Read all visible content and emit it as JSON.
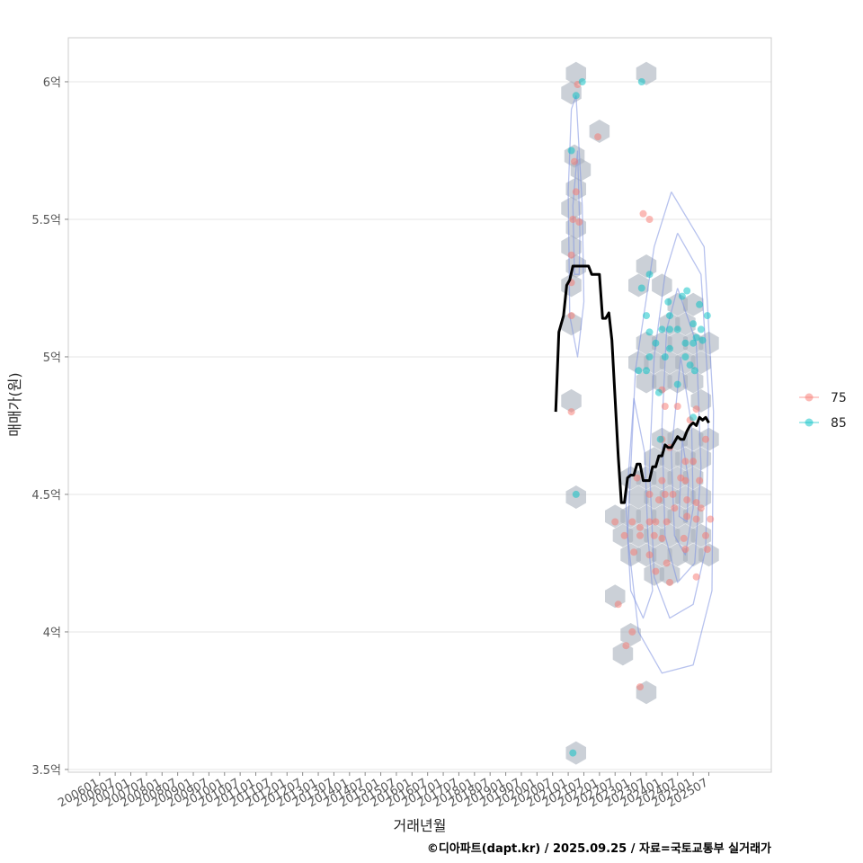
{
  "chart_data": {
    "type": "scatter",
    "title": "",
    "xlabel": "거래년월",
    "ylabel": "매매가(원)",
    "caption": "©디아파트(dapt.kr) / 2025.09.25 / 자료=국토교통부 실거래가",
    "x_ticks": [
      "200601",
      "200607",
      "200701",
      "200707",
      "200801",
      "200807",
      "200901",
      "200907",
      "201001",
      "201007",
      "201101",
      "201107",
      "201201",
      "201207",
      "201301",
      "201307",
      "201401",
      "201407",
      "201501",
      "201507",
      "201601",
      "201607",
      "201701",
      "201707",
      "201801",
      "201807",
      "201901",
      "201907",
      "202001",
      "202007",
      "202101",
      "202107",
      "202201",
      "202207",
      "202301",
      "202307",
      "202401",
      "202407",
      "202501",
      "202507"
    ],
    "y_ticks": [
      {
        "value": 3.5,
        "label": "3.5억"
      },
      {
        "value": 4.0,
        "label": "4억"
      },
      {
        "value": 4.5,
        "label": "4.5억"
      },
      {
        "value": 5.0,
        "label": "5억"
      },
      {
        "value": 5.5,
        "label": "5.5억"
      },
      {
        "value": 6.0,
        "label": "6억"
      }
    ],
    "ylim": [
      3.49,
      6.16
    ],
    "x_index_range": [
      -2.0,
      43.0
    ],
    "grid": true,
    "legend": {
      "position": "right",
      "entries": [
        {
          "label": "75",
          "color": "#F8766D"
        },
        {
          "label": "85",
          "color": "#00BFC4"
        }
      ]
    },
    "hex_cells": [
      [
        30.5,
        6.03
      ],
      [
        30.2,
        5.96
      ],
      [
        30.4,
        5.73
      ],
      [
        30.8,
        5.68
      ],
      [
        30.5,
        5.61
      ],
      [
        30.2,
        5.54
      ],
      [
        30.5,
        5.47
      ],
      [
        30.2,
        5.4
      ],
      [
        30.5,
        5.33
      ],
      [
        30.2,
        5.26
      ],
      [
        30.2,
        5.12
      ],
      [
        30.2,
        4.84
      ],
      [
        30.5,
        4.49
      ],
      [
        30.5,
        3.56
      ],
      [
        32.0,
        5.82
      ],
      [
        35.0,
        6.03
      ],
      [
        34.5,
        5.26
      ],
      [
        35.0,
        5.33
      ],
      [
        36.0,
        5.26
      ],
      [
        37.0,
        5.19
      ],
      [
        38.0,
        5.19
      ],
      [
        36.5,
        5.12
      ],
      [
        37.5,
        5.12
      ],
      [
        35.0,
        5.05
      ],
      [
        36.0,
        5.05
      ],
      [
        37.0,
        5.05
      ],
      [
        38.0,
        5.05
      ],
      [
        39.0,
        5.05
      ],
      [
        34.5,
        4.98
      ],
      [
        35.5,
        4.98
      ],
      [
        36.5,
        4.98
      ],
      [
        37.5,
        4.98
      ],
      [
        38.5,
        4.98
      ],
      [
        35.0,
        4.91
      ],
      [
        36.0,
        4.91
      ],
      [
        37.0,
        4.91
      ],
      [
        38.0,
        4.91
      ],
      [
        38.5,
        4.84
      ],
      [
        36.0,
        4.7
      ],
      [
        37.0,
        4.7
      ],
      [
        38.0,
        4.7
      ],
      [
        39.0,
        4.7
      ],
      [
        35.5,
        4.63
      ],
      [
        36.5,
        4.63
      ],
      [
        37.5,
        4.63
      ],
      [
        38.5,
        4.63
      ],
      [
        34.0,
        4.56
      ],
      [
        35.0,
        4.56
      ],
      [
        36.0,
        4.56
      ],
      [
        37.0,
        4.56
      ],
      [
        38.0,
        4.56
      ],
      [
        34.5,
        4.49
      ],
      [
        35.5,
        4.49
      ],
      [
        36.5,
        4.49
      ],
      [
        37.5,
        4.49
      ],
      [
        38.5,
        4.49
      ],
      [
        33.0,
        4.42
      ],
      [
        34.0,
        4.42
      ],
      [
        35.0,
        4.42
      ],
      [
        36.0,
        4.42
      ],
      [
        37.0,
        4.42
      ],
      [
        38.0,
        4.42
      ],
      [
        33.5,
        4.35
      ],
      [
        34.5,
        4.35
      ],
      [
        35.5,
        4.35
      ],
      [
        36.5,
        4.35
      ],
      [
        37.5,
        4.35
      ],
      [
        38.5,
        4.35
      ],
      [
        34.0,
        4.28
      ],
      [
        35.0,
        4.28
      ],
      [
        36.0,
        4.28
      ],
      [
        37.0,
        4.28
      ],
      [
        38.0,
        4.28
      ],
      [
        39.0,
        4.28
      ],
      [
        35.5,
        4.21
      ],
      [
        36.5,
        4.21
      ],
      [
        33.0,
        4.13
      ],
      [
        34.0,
        3.99
      ],
      [
        33.5,
        3.92
      ],
      [
        35.0,
        3.78
      ]
    ],
    "contours": [
      [
        [
          30.5,
          5.95
        ],
        [
          30.9,
          5.55
        ],
        [
          31.0,
          5.2
        ],
        [
          30.6,
          5.0
        ],
        [
          30.1,
          5.15
        ],
        [
          30.0,
          5.6
        ],
        [
          30.2,
          5.9
        ],
        [
          30.5,
          5.95
        ]
      ],
      [
        [
          30.6,
          5.75
        ],
        [
          30.75,
          5.45
        ],
        [
          30.7,
          5.3
        ],
        [
          30.4,
          5.3
        ],
        [
          30.3,
          5.55
        ],
        [
          30.6,
          5.75
        ]
      ],
      [
        [
          37.0,
          5.45
        ],
        [
          38.5,
          5.3
        ],
        [
          39.0,
          4.85
        ],
        [
          38.8,
          4.3
        ],
        [
          38.0,
          4.1
        ],
        [
          36.5,
          4.05
        ],
        [
          35.5,
          4.2
        ],
        [
          35.2,
          4.6
        ],
        [
          35.5,
          5.0
        ],
        [
          36.2,
          5.3
        ],
        [
          37.0,
          5.45
        ]
      ],
      [
        [
          37.0,
          5.25
        ],
        [
          38.2,
          5.05
        ],
        [
          38.5,
          4.6
        ],
        [
          38.1,
          4.25
        ],
        [
          37.0,
          4.18
        ],
        [
          36.2,
          4.35
        ],
        [
          36.0,
          4.75
        ],
        [
          36.3,
          5.1
        ],
        [
          37.0,
          5.25
        ]
      ],
      [
        [
          37.2,
          5.0
        ],
        [
          37.9,
          4.75
        ],
        [
          38.0,
          4.45
        ],
        [
          37.5,
          4.28
        ],
        [
          36.8,
          4.35
        ],
        [
          36.6,
          4.65
        ],
        [
          37.2,
          5.0
        ]
      ],
      [
        [
          37.3,
          4.7
        ],
        [
          37.7,
          4.55
        ],
        [
          37.6,
          4.4
        ],
        [
          37.1,
          4.42
        ],
        [
          37.3,
          4.7
        ]
      ],
      [
        [
          34.2,
          4.85
        ],
        [
          34.9,
          4.65
        ],
        [
          35.1,
          4.35
        ],
        [
          35.4,
          4.15
        ],
        [
          34.8,
          4.05
        ],
        [
          34.0,
          4.15
        ],
        [
          33.7,
          4.45
        ],
        [
          34.2,
          4.85
        ]
      ],
      [
        [
          36.6,
          5.6
        ],
        [
          38.7,
          5.4
        ],
        [
          39.3,
          4.8
        ],
        [
          39.2,
          4.15
        ],
        [
          38.0,
          3.88
        ],
        [
          36.0,
          3.85
        ],
        [
          34.5,
          4.0
        ],
        [
          33.8,
          4.35
        ],
        [
          34.3,
          4.95
        ],
        [
          35.5,
          5.4
        ],
        [
          36.6,
          5.6
        ]
      ]
    ],
    "series": [
      {
        "name": "75",
        "color": "#F8766D",
        "points": [
          [
            30.6,
            5.99
          ],
          [
            30.4,
            5.71
          ],
          [
            30.5,
            5.6
          ],
          [
            30.3,
            5.5
          ],
          [
            30.7,
            5.49
          ],
          [
            30.2,
            5.37
          ],
          [
            30.2,
            5.27
          ],
          [
            30.2,
            5.15
          ],
          [
            30.2,
            4.8
          ],
          [
            31.9,
            5.8
          ],
          [
            34.8,
            5.52
          ],
          [
            35.2,
            5.5
          ],
          [
            36.0,
            4.88
          ],
          [
            36.2,
            4.82
          ],
          [
            37.0,
            4.82
          ],
          [
            38.2,
            4.81
          ],
          [
            37.8,
            4.77
          ],
          [
            38.8,
            4.7
          ],
          [
            36.0,
            4.7
          ],
          [
            36.5,
            4.67
          ],
          [
            37.5,
            4.62
          ],
          [
            38.0,
            4.62
          ],
          [
            36.0,
            4.55
          ],
          [
            37.5,
            4.55
          ],
          [
            37.2,
            4.56
          ],
          [
            38.4,
            4.55
          ],
          [
            34.4,
            4.56
          ],
          [
            35.2,
            4.5
          ],
          [
            35.8,
            4.48
          ],
          [
            36.2,
            4.5
          ],
          [
            36.7,
            4.5
          ],
          [
            37.6,
            4.48
          ],
          [
            38.2,
            4.47
          ],
          [
            38.5,
            4.45
          ],
          [
            33.0,
            4.4
          ],
          [
            34.1,
            4.4
          ],
          [
            34.6,
            4.38
          ],
          [
            35.2,
            4.4
          ],
          [
            35.6,
            4.4
          ],
          [
            36.3,
            4.4
          ],
          [
            36.8,
            4.45
          ],
          [
            37.6,
            4.42
          ],
          [
            38.2,
            4.41
          ],
          [
            39.1,
            4.41
          ],
          [
            33.6,
            4.35
          ],
          [
            34.6,
            4.35
          ],
          [
            35.5,
            4.35
          ],
          [
            36.0,
            4.34
          ],
          [
            37.4,
            4.34
          ],
          [
            38.8,
            4.35
          ],
          [
            34.2,
            4.29
          ],
          [
            35.2,
            4.28
          ],
          [
            36.3,
            4.25
          ],
          [
            37.5,
            4.3
          ],
          [
            38.9,
            4.3
          ],
          [
            35.6,
            4.22
          ],
          [
            36.5,
            4.18
          ],
          [
            38.2,
            4.2
          ],
          [
            33.2,
            4.1
          ],
          [
            34.1,
            4.0
          ],
          [
            33.7,
            3.95
          ],
          [
            34.6,
            3.8
          ]
        ]
      },
      {
        "name": "85",
        "color": "#00BFC4",
        "points": [
          [
            30.9,
            6.0
          ],
          [
            30.5,
            5.95
          ],
          [
            30.2,
            5.75
          ],
          [
            30.5,
            4.5
          ],
          [
            30.3,
            3.56
          ],
          [
            34.7,
            6.0
          ],
          [
            35.2,
            5.3
          ],
          [
            34.7,
            5.25
          ],
          [
            36.4,
            5.2
          ],
          [
            37.3,
            5.22
          ],
          [
            37.6,
            5.24
          ],
          [
            38.4,
            5.19
          ],
          [
            38.9,
            5.15
          ],
          [
            35.0,
            5.15
          ],
          [
            36.5,
            5.15
          ],
          [
            37.0,
            5.1
          ],
          [
            38.0,
            5.12
          ],
          [
            38.5,
            5.1
          ],
          [
            35.2,
            5.09
          ],
          [
            36.0,
            5.1
          ],
          [
            36.5,
            5.1
          ],
          [
            38.2,
            5.07
          ],
          [
            38.6,
            5.06
          ],
          [
            35.6,
            5.05
          ],
          [
            36.5,
            5.03
          ],
          [
            37.5,
            5.05
          ],
          [
            38.0,
            5.05
          ],
          [
            35.2,
            5.0
          ],
          [
            36.2,
            5.0
          ],
          [
            37.5,
            5.0
          ],
          [
            37.8,
            4.97
          ],
          [
            34.5,
            4.95
          ],
          [
            35.0,
            4.95
          ],
          [
            38.1,
            4.95
          ],
          [
            37.0,
            4.9
          ],
          [
            35.8,
            4.87
          ],
          [
            38.0,
            4.78
          ],
          [
            35.9,
            4.7
          ]
        ]
      }
    ],
    "trend": {
      "name": "",
      "color": "#000000",
      "points": [
        [
          29.2,
          4.8
        ],
        [
          29.4,
          5.09
        ],
        [
          29.7,
          5.15
        ],
        [
          29.9,
          5.26
        ],
        [
          30.1,
          5.28
        ],
        [
          30.3,
          5.33
        ],
        [
          30.6,
          5.33
        ],
        [
          31.0,
          5.33
        ],
        [
          31.3,
          5.33
        ],
        [
          31.5,
          5.3
        ],
        [
          32.0,
          5.3
        ],
        [
          32.2,
          5.14
        ],
        [
          32.4,
          5.14
        ],
        [
          32.6,
          5.16
        ],
        [
          32.8,
          5.06
        ],
        [
          33.0,
          4.85
        ],
        [
          33.2,
          4.64
        ],
        [
          33.4,
          4.47
        ],
        [
          33.6,
          4.47
        ],
        [
          33.8,
          4.56
        ],
        [
          34.0,
          4.57
        ],
        [
          34.2,
          4.57
        ],
        [
          34.4,
          4.61
        ],
        [
          34.6,
          4.61
        ],
        [
          34.8,
          4.55
        ],
        [
          35.2,
          4.55
        ],
        [
          35.4,
          4.6
        ],
        [
          35.6,
          4.6
        ],
        [
          35.8,
          4.64
        ],
        [
          36.0,
          4.64
        ],
        [
          36.2,
          4.68
        ],
        [
          36.4,
          4.67
        ],
        [
          36.6,
          4.67
        ],
        [
          36.8,
          4.69
        ],
        [
          37.0,
          4.71
        ],
        [
          37.2,
          4.7
        ],
        [
          37.4,
          4.7
        ],
        [
          37.6,
          4.73
        ],
        [
          37.8,
          4.75
        ],
        [
          38.0,
          4.76
        ],
        [
          38.2,
          4.75
        ],
        [
          38.4,
          4.78
        ],
        [
          38.6,
          4.77
        ],
        [
          38.8,
          4.78
        ],
        [
          39.0,
          4.76
        ]
      ]
    }
  }
}
